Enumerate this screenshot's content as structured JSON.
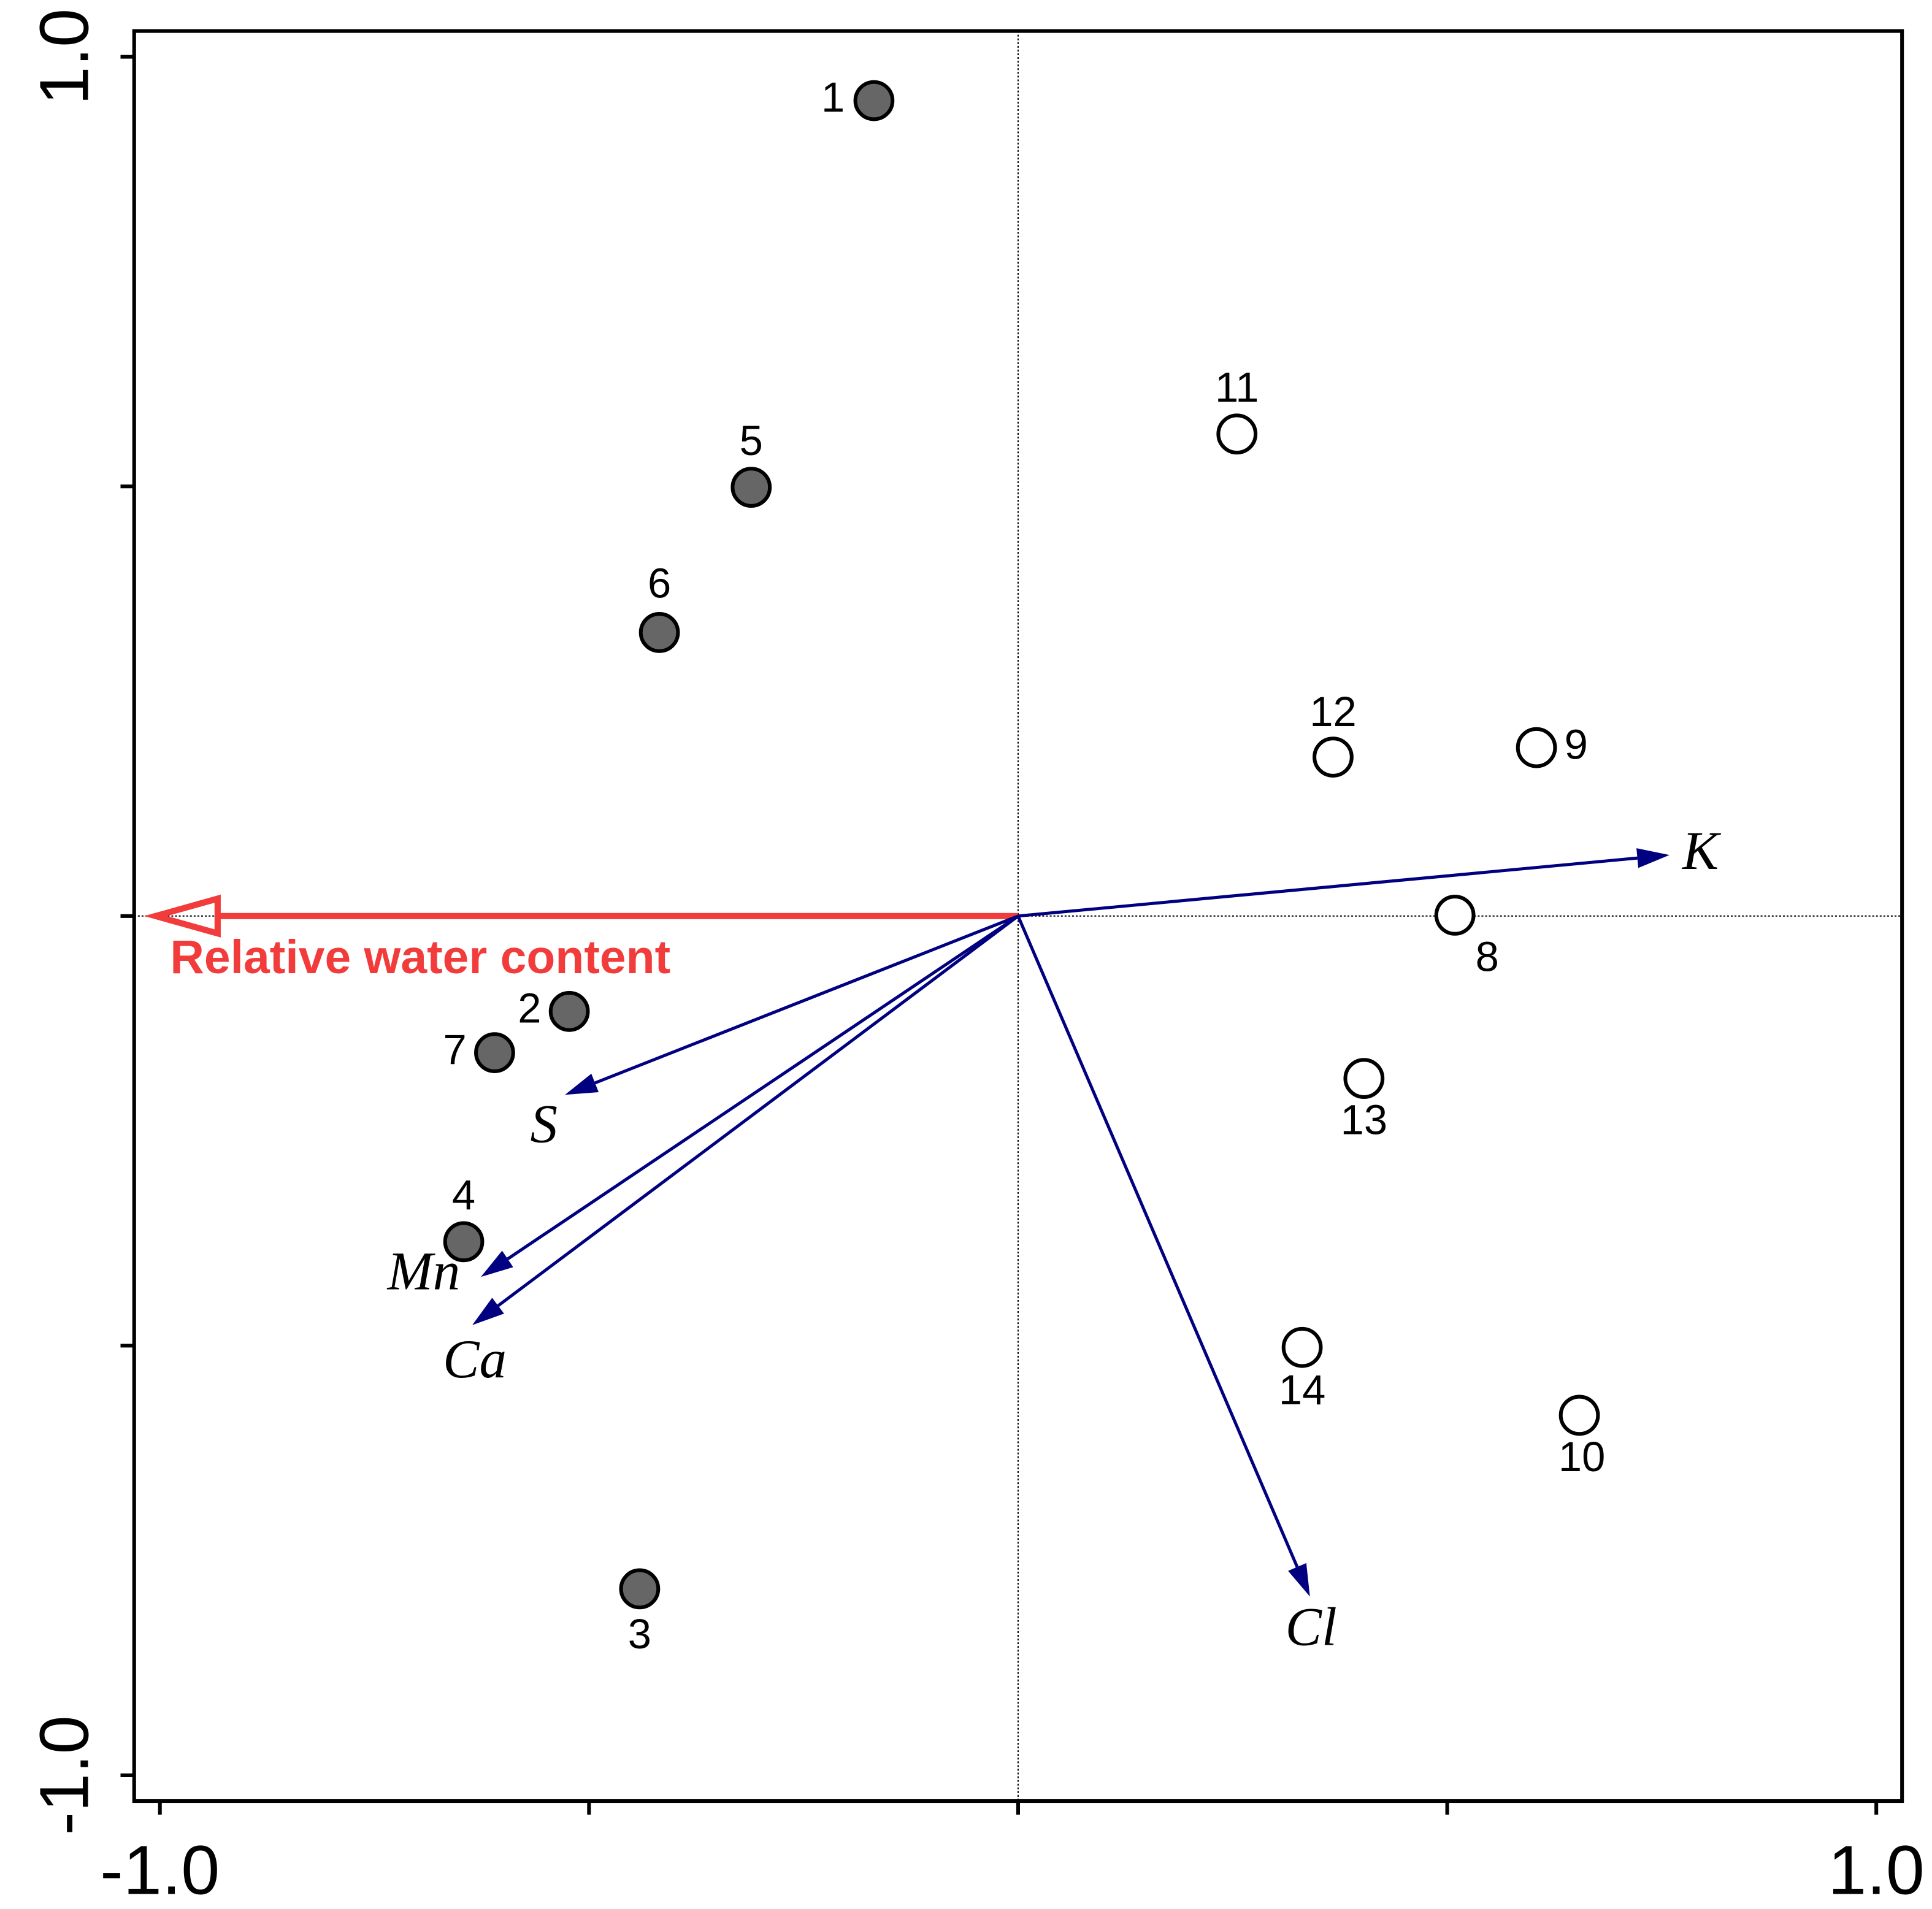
{
  "chart_data": {
    "type": "biplot",
    "xlim": [
      -1.03,
      1.03
    ],
    "ylim": [
      -1.03,
      1.03
    ],
    "xticks": [
      {
        "value": -1,
        "label": "-1.0"
      },
      {
        "value": 1,
        "label": "1.0"
      }
    ],
    "yticks": [
      {
        "value": -1,
        "label": "-1.0"
      },
      {
        "value": 1,
        "label": "1.0"
      }
    ],
    "xminor": [
      -0.5,
      0,
      0.5
    ],
    "yminor": [
      -0.5,
      0,
      0.5
    ],
    "zero_lines": true,
    "samples": {
      "labels": [
        "1",
        "2",
        "3",
        "4",
        "5",
        "6",
        "7",
        "8",
        "9",
        "10",
        "11",
        "12",
        "13",
        "14"
      ],
      "x": [
        -0.168,
        -0.523,
        -0.441,
        -0.646,
        -0.311,
        -0.418,
        -0.61,
        0.509,
        0.604,
        0.654,
        0.255,
        0.367,
        0.403,
        0.331
      ],
      "y": [
        0.949,
        -0.111,
        -0.783,
        -0.379,
        0.499,
        0.33,
        -0.159,
        0.001,
        0.196,
        -0.581,
        0.561,
        0.185,
        -0.189,
        -0.502
      ],
      "fill": [
        "#666666",
        "#666666",
        "#666666",
        "#666666",
        "#666666",
        "#666666",
        "#666666",
        "#ffffff",
        "#ffffff",
        "#ffffff",
        "#ffffff",
        "#ffffff",
        "#ffffff",
        "#ffffff"
      ]
    },
    "vectors": {
      "labels": [
        "K",
        "S",
        "Mn",
        "Ca",
        "Cl"
      ],
      "x": [
        0.759,
        -0.528,
        -0.626,
        -0.636,
        0.34
      ],
      "y": [
        0.071,
        -0.208,
        -0.42,
        -0.476,
        -0.792
      ],
      "color": "#000080"
    },
    "env_vector": {
      "label": "Relative water content",
      "x": -1.005,
      "y": 0,
      "color": "#f23c3c"
    }
  }
}
